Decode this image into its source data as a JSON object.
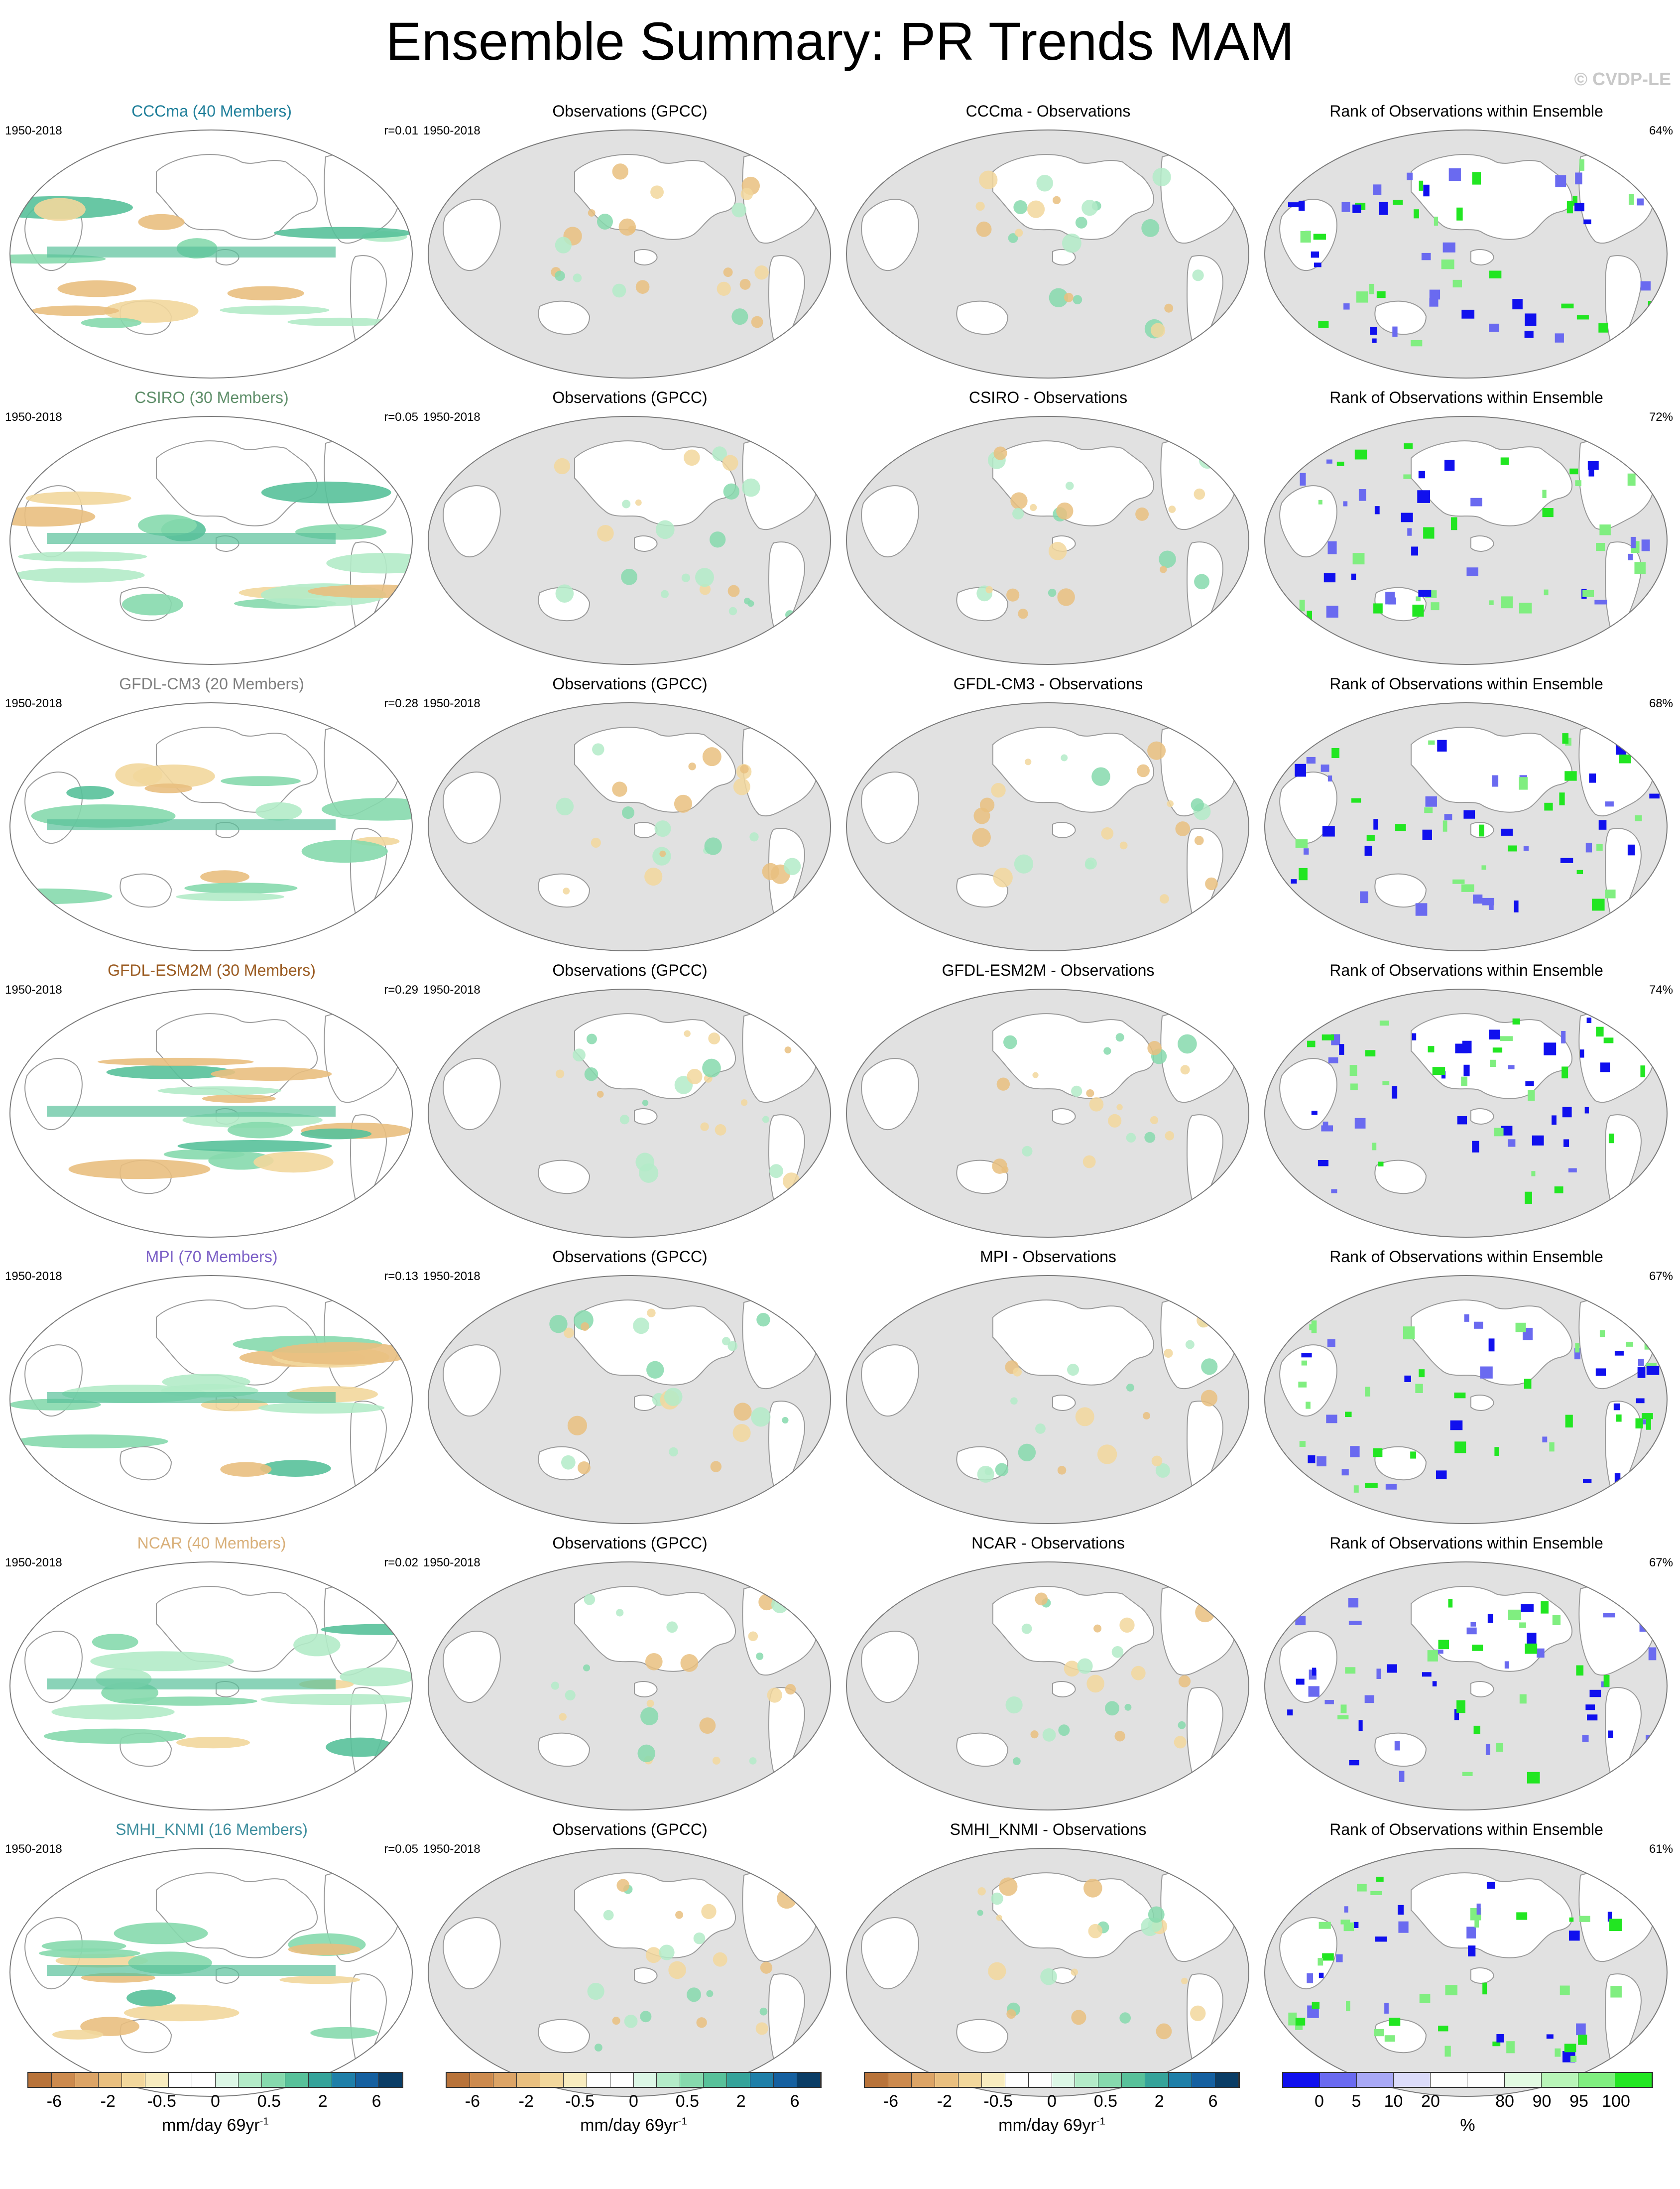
{
  "title": "Ensemble Summary: PR Trends MAM",
  "copyright": "© CVDP-LE",
  "period": "1950-2018",
  "rows": [
    {
      "model": "CCCma",
      "model_title": "CCCma (40 Members)",
      "title_color": "#1f7f9a",
      "r": "r=0.01",
      "diff_title": "CCCma - Observations",
      "rank_pct": "64%"
    },
    {
      "model": "CSIRO",
      "model_title": "CSIRO (30 Members)",
      "title_color": "#5f8f6a",
      "r": "r=0.05",
      "diff_title": "CSIRO - Observations",
      "rank_pct": "72%"
    },
    {
      "model": "GFDL-CM3",
      "model_title": "GFDL-CM3 (20 Members)",
      "title_color": "#808080",
      "r": "r=0.28",
      "diff_title": "GFDL-CM3 - Observations",
      "rank_pct": "68%"
    },
    {
      "model": "GFDL-ESM2M",
      "model_title": "GFDL-ESM2M (30 Members)",
      "title_color": "#9a5a20",
      "r": "r=0.29",
      "diff_title": "GFDL-ESM2M - Observations",
      "rank_pct": "74%"
    },
    {
      "model": "MPI",
      "model_title": "MPI (70 Members)",
      "title_color": "#7b5fc6",
      "r": "r=0.13",
      "diff_title": "MPI - Observations",
      "rank_pct": "67%"
    },
    {
      "model": "NCAR",
      "model_title": "NCAR (40 Members)",
      "title_color": "#d9b07a",
      "r": "r=0.02",
      "diff_title": "NCAR - Observations",
      "rank_pct": "67%"
    },
    {
      "model": "SMHI_KNMI",
      "model_title": "SMHI_KNMI (16 Members)",
      "title_color": "#3f8f9f",
      "r": "r=0.05",
      "diff_title": "SMHI_KNMI - Observations",
      "rank_pct": "61%"
    }
  ],
  "obs_title": "Observations (GPCC)",
  "rank_title": "Rank of Observations within Ensemble",
  "trend_colorbar": {
    "colors": [
      "#b8733a",
      "#cc8a4e",
      "#dca466",
      "#e9bf7f",
      "#f2d79c",
      "#f8ecbf",
      "#ffffff",
      "#ffffff",
      "#dcf7e6",
      "#b3ebc8",
      "#86d9ad",
      "#58c19a",
      "#35a39a",
      "#1f7fa8",
      "#1560a0",
      "#0a3d66"
    ],
    "labels": [
      "-6",
      "-2",
      "-0.5",
      "0",
      "0.5",
      "2",
      "6"
    ],
    "unit": "mm/day 69yr",
    "unit_sup": "-1"
  },
  "rank_colorbar": {
    "colors": [
      "#1010ee",
      "#6a6af0",
      "#a8a8f6",
      "#dcdcfa",
      "#ffffff",
      "#ffffff",
      "#e2fbe2",
      "#b8f5b8",
      "#80ee80",
      "#22e622"
    ],
    "labels": [
      "0",
      "5",
      "10",
      "20",
      "80",
      "90",
      "95",
      "100"
    ],
    "unit": "%"
  }
}
